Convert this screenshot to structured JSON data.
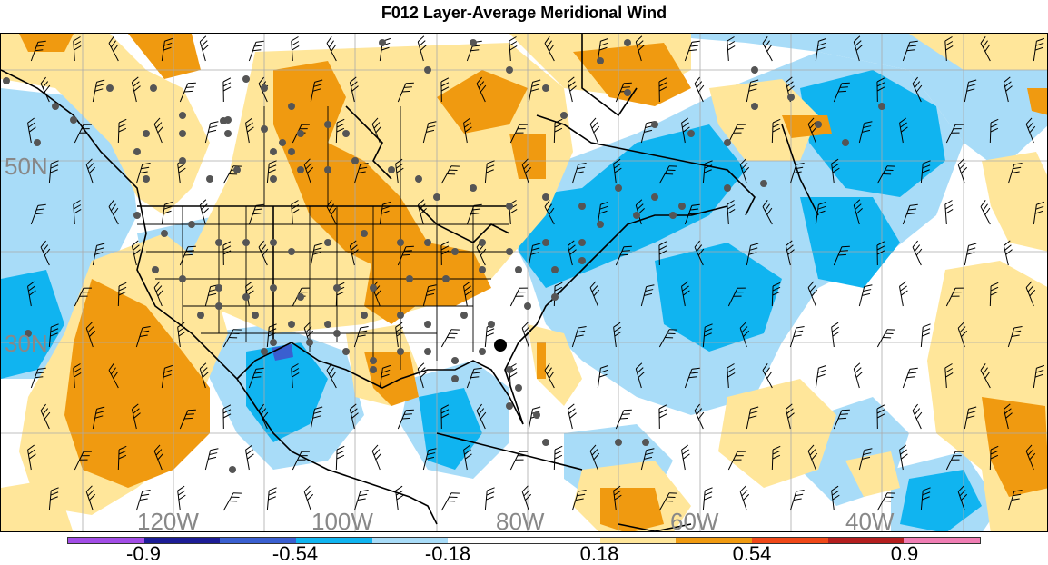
{
  "title": "F012 Layer-Average Meridional Wind",
  "lat_labels": [
    {
      "text": "50N"
    },
    {
      "text": "30N"
    }
  ],
  "lon_labels": [
    {
      "text": "120W"
    },
    {
      "text": "100W"
    },
    {
      "text": "80W"
    },
    {
      "text": "60W"
    },
    {
      "text": "40W"
    }
  ],
  "colorbar": {
    "colors": [
      "#a24de6",
      "#1c1c96",
      "#3a5fd0",
      "#10b4f0",
      "#a8dcf8",
      "#ffffff",
      "#ffffff",
      "#ffe69a",
      "#f09a10",
      "#f04818",
      "#b41e1e",
      "#f07eb4"
    ],
    "labels": [
      "-0.9",
      "-0.54",
      "-0.18",
      "0.18",
      "0.54",
      "0.9"
    ]
  },
  "field_colors": {
    "strong_negative": "#10b4f0",
    "weak_negative": "#a8dcf8",
    "weak_positive": "#ffe69a",
    "strong_positive": "#f09a10",
    "extreme_negative": "#3a5fd0"
  },
  "highlight_station": {
    "color": "#000000"
  }
}
